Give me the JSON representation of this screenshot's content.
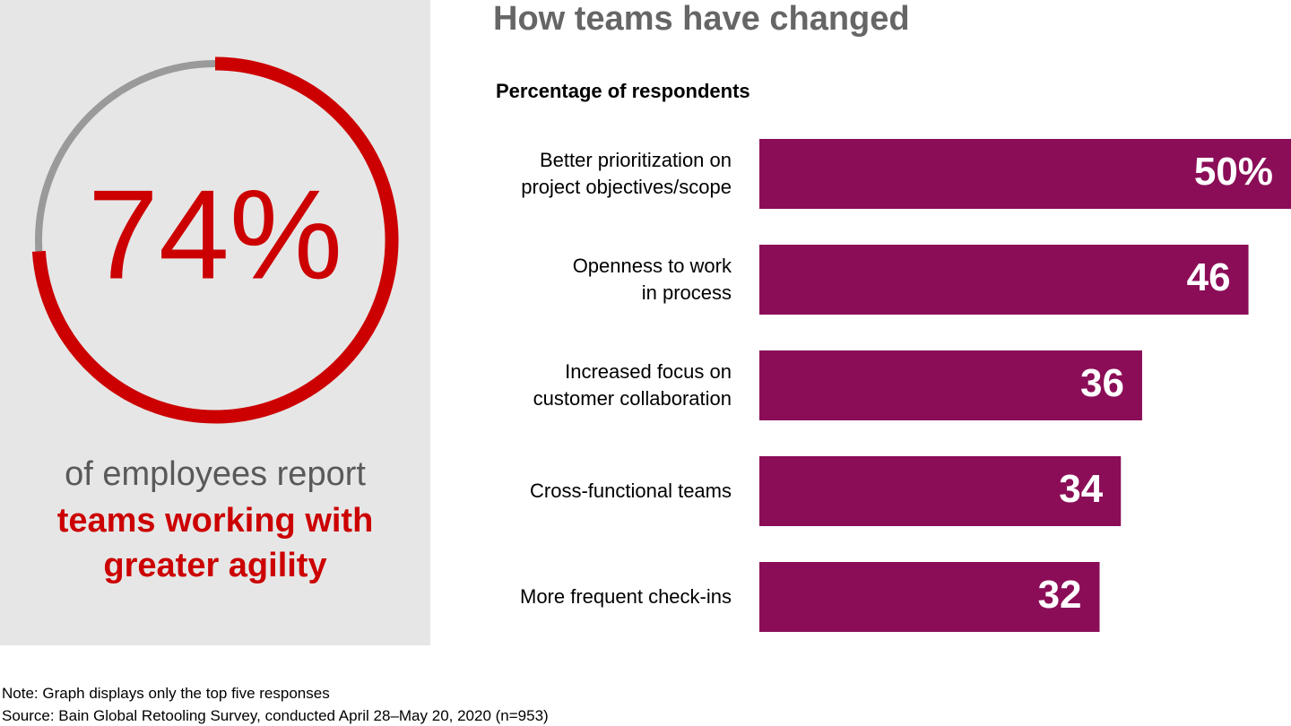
{
  "chart_data": [
    {
      "type": "gauge",
      "values": [
        74
      ],
      "value_labels": [
        "74%"
      ],
      "range": [
        0,
        100
      ],
      "color": "#cc0000",
      "track_color": "#9a9a9a",
      "caption": "of employees report",
      "highlight": "teams working with\ngreater agility"
    },
    {
      "type": "bar",
      "orientation": "horizontal",
      "title": "How teams have changed",
      "subtitle": "Percentage of respondents",
      "categories": [
        "Better prioritization on\nproject objectives/scope",
        "Openness to work\nin process",
        "Increased focus on\ncustomer collaboration",
        "Cross-functional teams",
        "More frequent check-ins"
      ],
      "values": [
        50,
        46,
        36,
        34,
        32
      ],
      "value_labels": [
        "50%",
        "46",
        "36",
        "34",
        "32"
      ],
      "color": "#8b0d57",
      "xlim": [
        0,
        50
      ]
    }
  ],
  "notes": [
    "Note: Graph displays only the top five responses",
    "Source: Bain Global Retooling Survey, conducted April 28–May 20, 2020 (n=953)"
  ]
}
